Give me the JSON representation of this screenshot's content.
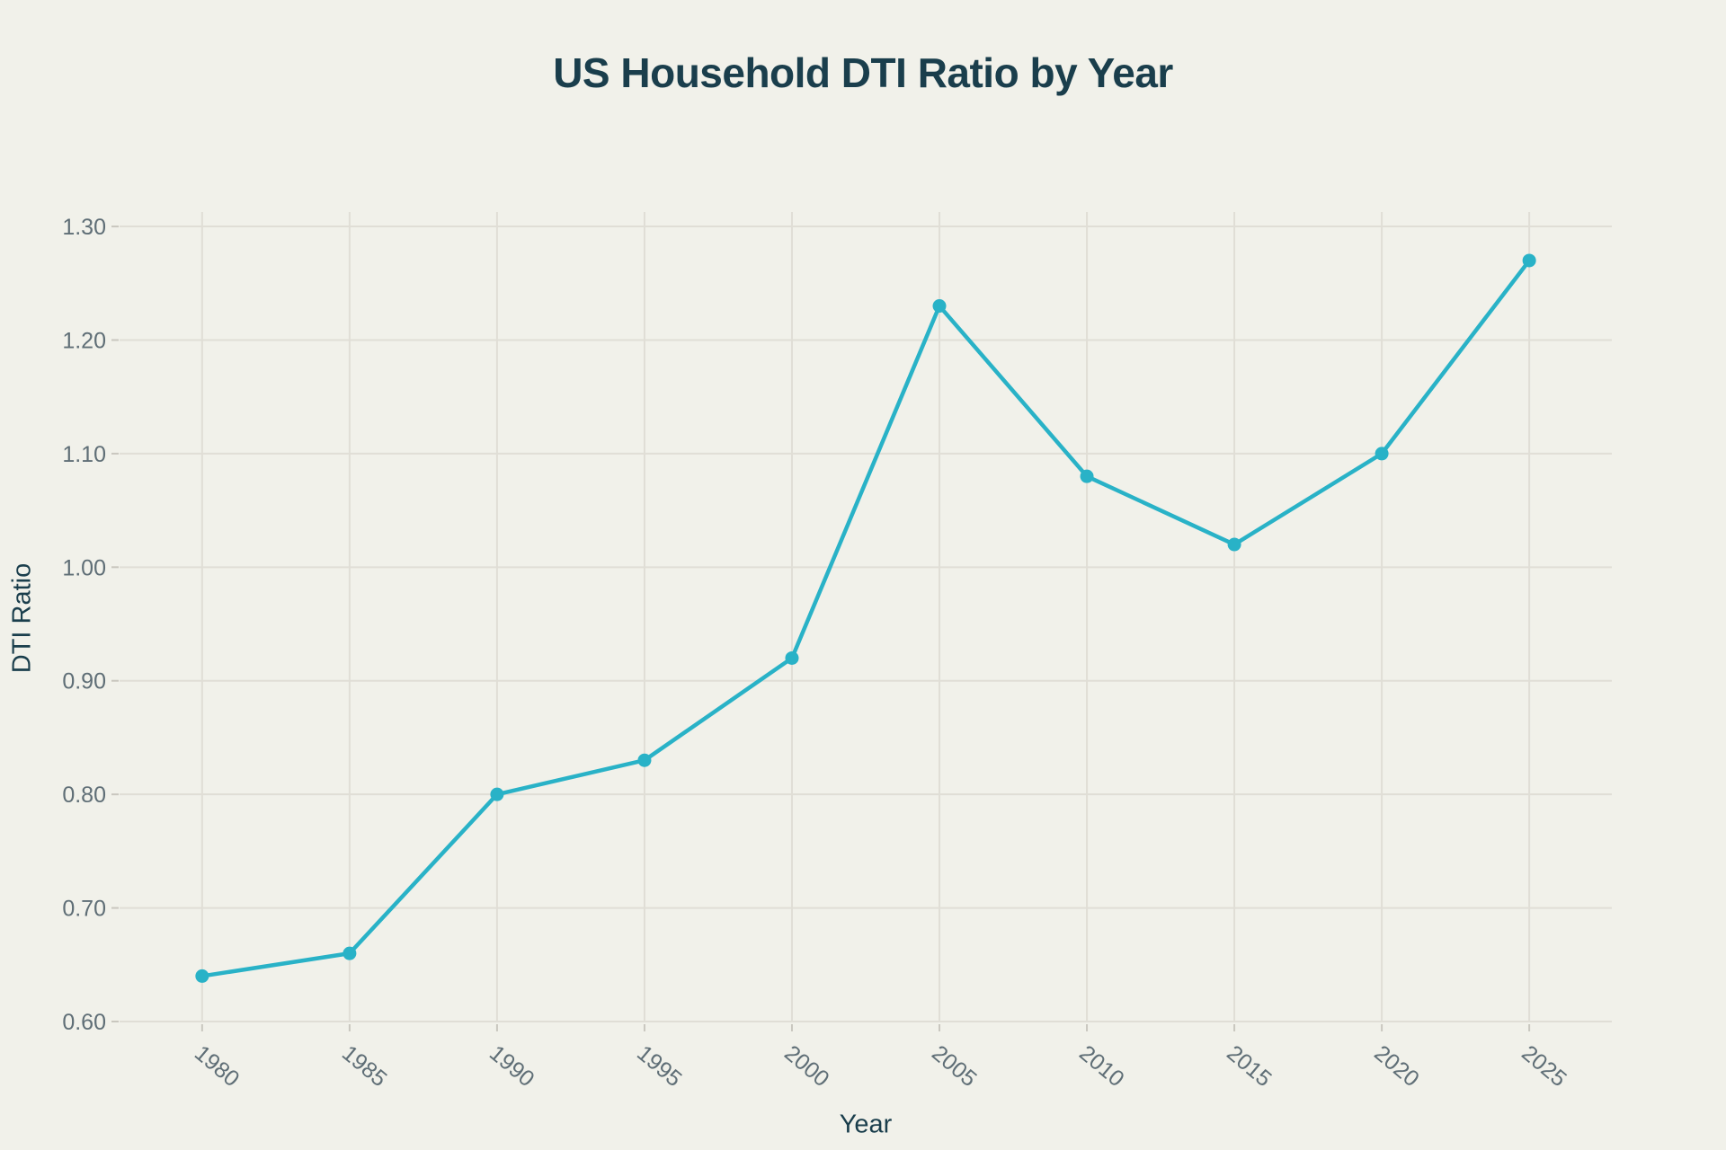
{
  "page": {
    "background": "#f1f1ea"
  },
  "chart_data": {
    "type": "line",
    "title": "US Household DTI Ratio by Year",
    "xlabel": "Year",
    "ylabel": "DTI Ratio",
    "x": [
      1980,
      1985,
      1990,
      1995,
      2000,
      2005,
      2010,
      2015,
      2020,
      2025
    ],
    "values": [
      0.64,
      0.66,
      0.8,
      0.83,
      0.92,
      1.23,
      1.08,
      1.02,
      1.1,
      1.27
    ],
    "x_tick_labels": [
      "1980",
      "1985",
      "1990",
      "1995",
      "2000",
      "2005",
      "2010",
      "2015",
      "2020",
      "2025"
    ],
    "x_ticks": [
      1980,
      1985,
      1990,
      1995,
      2000,
      2005,
      2010,
      2015,
      2020,
      2025
    ],
    "y_tick_labels": [
      "0.60",
      "0.70",
      "0.80",
      "0.90",
      "1.00",
      "1.10",
      "1.20",
      "1.30"
    ],
    "y_ticks": [
      0.6,
      0.7,
      0.8,
      0.9,
      1.0,
      1.1,
      1.2,
      1.3
    ],
    "x_range": [
      1977.2,
      2027.8
    ],
    "y_range": [
      0.6,
      1.3127
    ],
    "x_tick_angle": 40,
    "grid": true,
    "legend": "none",
    "line_color": "#29b2c7",
    "marker_color": "#29b2c7",
    "grid_color": "#e0ded6",
    "tick_color": "#c9c7bf",
    "tick_label_color": "#5f6e76",
    "title_color": "#1a3e4c"
  }
}
